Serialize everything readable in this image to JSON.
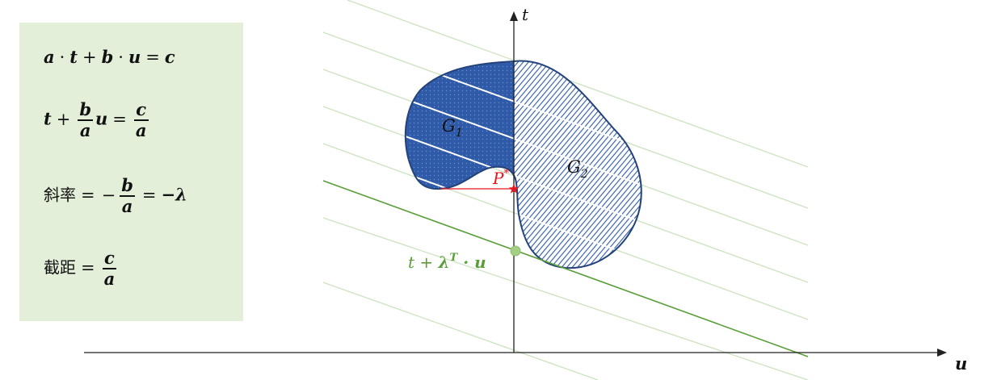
{
  "formulas": {
    "eq1": {
      "a": "a",
      "dot": "·",
      "t": "t",
      "plus": "+",
      "b": "b",
      "u": "u",
      "equals": "=",
      "c": "c"
    },
    "eq2": {
      "t": "t",
      "plus": "+",
      "num_b": "b",
      "den_a": "a",
      "u": "u",
      "equals": "=",
      "num_c": "c",
      "den_a2": "a"
    },
    "eq3": {
      "label": "斜率",
      "equals": "=",
      "minus": "−",
      "num_b": "b",
      "den_a": "a",
      "equals2": "=",
      "rhs": "−λ"
    },
    "eq4": {
      "label": "截距",
      "equals": "=",
      "num_c": "c",
      "den_a": "a"
    }
  },
  "axes": {
    "t_label": "t",
    "u_label": "u"
  },
  "regions": {
    "g1": "G",
    "g1_sub": "1",
    "g2": "G",
    "g2_sub": "2"
  },
  "point": {
    "label": "P",
    "sup": "*"
  },
  "line_label": {
    "text_t": "t + ",
    "lambda": "λ",
    "sup": "T",
    "rest": " · u"
  },
  "colors": {
    "box_bg": "#e3efd9",
    "g1_fill": "#2e5aa8",
    "g2_hatch": "#2e5aa8",
    "outline": "#24427a",
    "accent_green": "#5a9e3a",
    "faint_green": "#cfe3c3",
    "red": "#e8141e"
  }
}
